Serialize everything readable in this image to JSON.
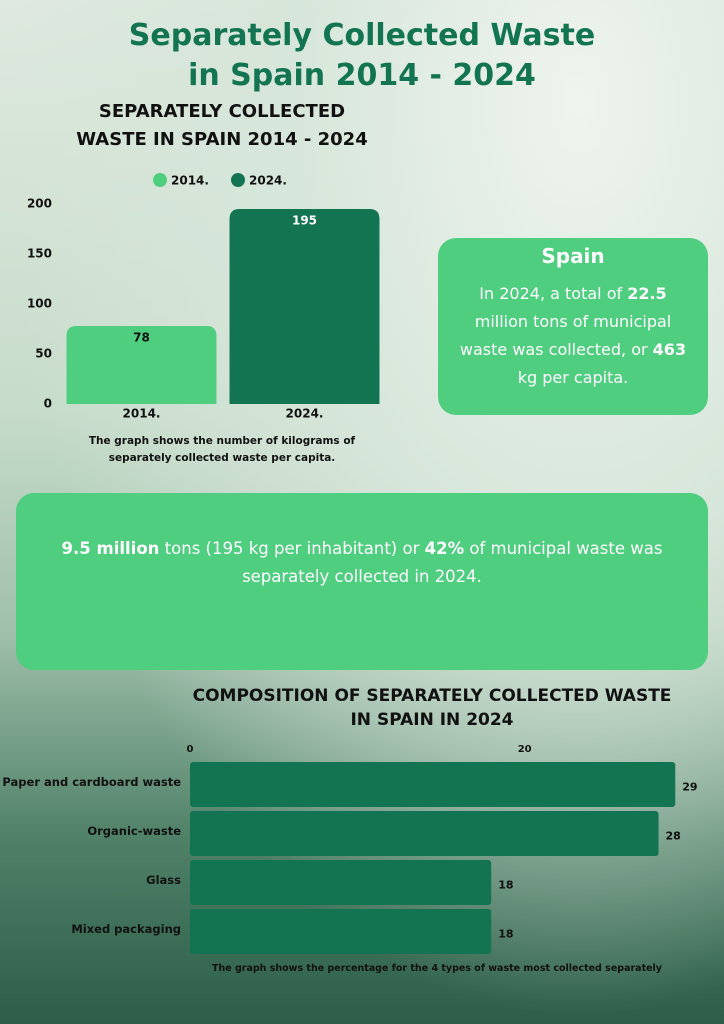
{
  "title": "Separately Collected Waste in Spain 2014 - 2024",
  "info_box": {
    "heading": "Spain",
    "text": [
      "In 2024, a total of ",
      "22.5",
      " million tons of municipal waste was collected, or ",
      "463",
      " kg per capita."
    ]
  },
  "highlight_box": {
    "text": [
      "9.5 million",
      " tons (195 kg per inhabitant) or ",
      "42%",
      " of municipal waste was separately collected in 2024."
    ]
  },
  "chart_data": [
    {
      "type": "bar",
      "title": "SEPARATELY COLLECTED WASTE IN SPAIN 2014 - 2024",
      "categories": [
        "2014.",
        "2024."
      ],
      "values": [
        78,
        195
      ],
      "colors": [
        "#4fce80",
        "#137452"
      ],
      "ylim": [
        0,
        200
      ],
      "yticks": [
        0,
        50,
        100,
        150,
        200
      ],
      "legend": "top",
      "note": "The graph shows the number of kilograms of separately collected waste per capita."
    },
    {
      "type": "bar",
      "orientation": "horizontal",
      "title": "COMPOSITION OF SEPARATELY COLLECTED WASTE IN SPAIN IN 2024",
      "categories": [
        "Paper and cardboard waste",
        "Organic-waste",
        "Glass",
        "Mixed packaging"
      ],
      "values": [
        29,
        28,
        18,
        18
      ],
      "color": "#137452",
      "xlim": [
        0,
        30
      ],
      "xticks": [
        0,
        20
      ],
      "note": "The graph shows the percentage for the 4 types of waste most collected separately"
    }
  ]
}
